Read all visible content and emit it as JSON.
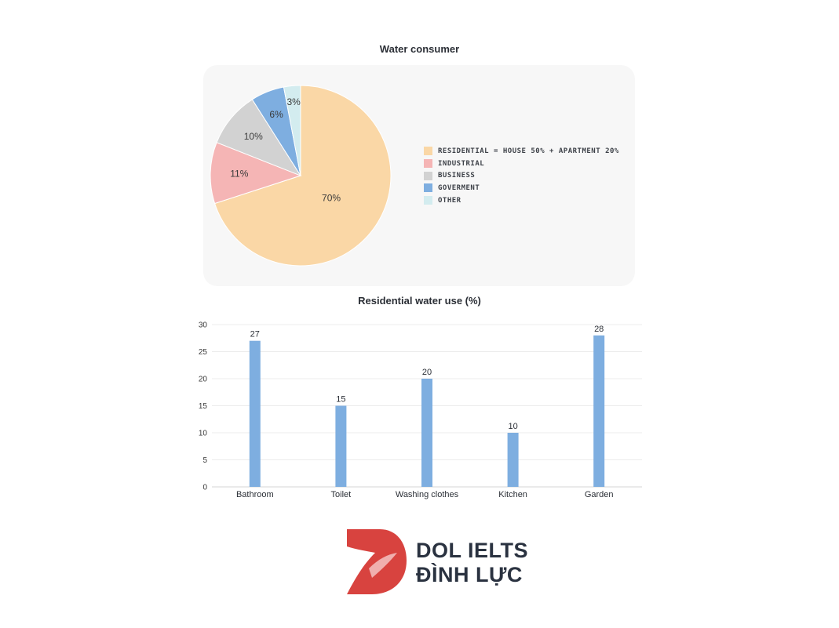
{
  "chart_data": [
    {
      "type": "pie",
      "title": "Water consumer",
      "slices": [
        {
          "label": "RESIDENTIAL = HOUSE 50% + APARTMENT 20%",
          "value": 70,
          "display": "70%",
          "color": "#fad7a6"
        },
        {
          "label": "INDUSTRIAL",
          "value": 11,
          "display": "11%",
          "color": "#f5b5b5"
        },
        {
          "label": "BUSINESS",
          "value": 10,
          "display": "10%",
          "color": "#d2d2d2"
        },
        {
          "label": "GOVERMENT",
          "value": 6,
          "display": "6%",
          "color": "#7eaee0"
        },
        {
          "label": "OTHER",
          "value": 3,
          "display": "3%",
          "color": "#d3ecef"
        }
      ],
      "legend_position": "right"
    },
    {
      "type": "bar",
      "title": "Residential water use (%)",
      "categories": [
        "Bathroom",
        "Toilet",
        "Washing clothes",
        "Kitchen",
        "Garden"
      ],
      "values": [
        27,
        15,
        20,
        10,
        28
      ],
      "value_labels": [
        "27",
        "15",
        "20",
        "10",
        "28"
      ],
      "ylim": [
        0,
        30
      ],
      "yticks": [
        0,
        5,
        10,
        15,
        20,
        25,
        30
      ],
      "grid": true,
      "bar_color": "#7eaee0",
      "xlabel": "",
      "ylabel": ""
    }
  ],
  "logo": {
    "line1": "DOL IELTS",
    "line2": "ĐÌNH LỰC",
    "colors": {
      "mark": "#d8433f",
      "text": "#2a3240"
    }
  }
}
